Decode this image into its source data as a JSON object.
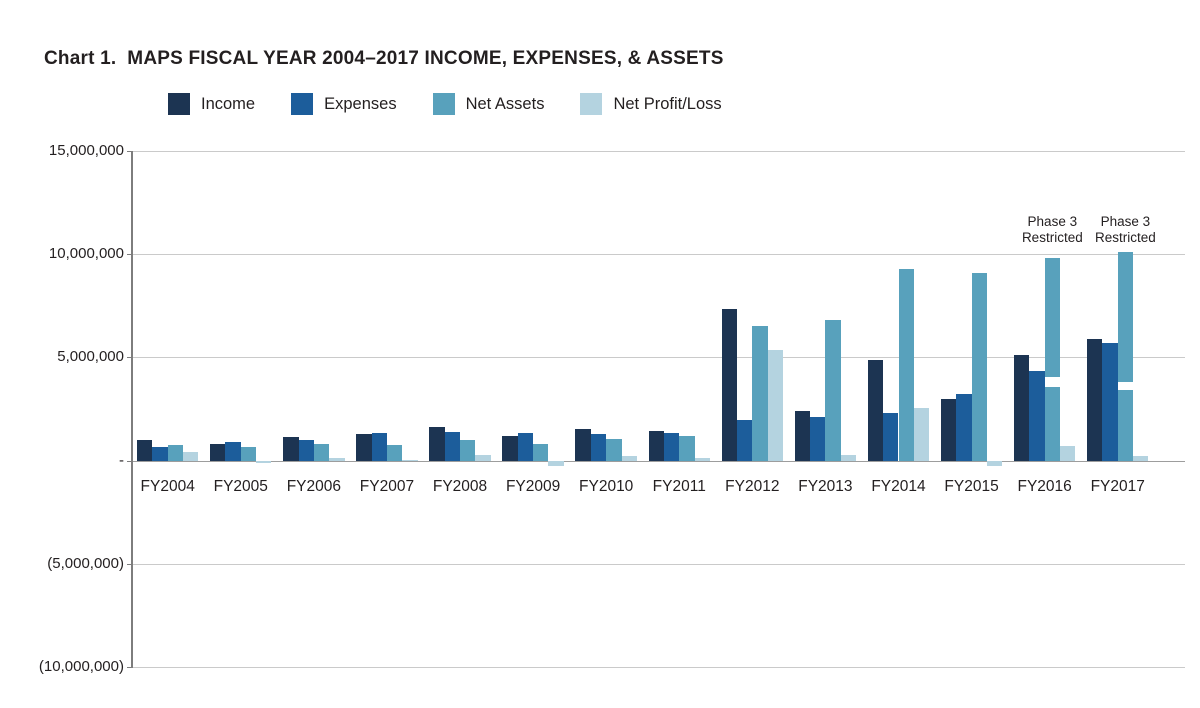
{
  "page": {
    "title": "Chart 1.  MAPS FISCAL YEAR 2004–2017 INCOME, EXPENSES, & ASSETS"
  },
  "chart_data": {
    "type": "bar",
    "title": "Chart 1.  MAPS FISCAL YEAR 2004–2017 INCOME, EXPENSES, & ASSETS",
    "xlabel": "",
    "ylabel": "",
    "grid": "horizontal",
    "legend_position": "top",
    "ylim": [
      -10000000,
      15000000
    ],
    "y_ticks": [
      {
        "value": 15000000,
        "label": "15,000,000"
      },
      {
        "value": 10000000,
        "label": "10,000,000"
      },
      {
        "value": 5000000,
        "label": "5,000,000"
      },
      {
        "value": 0,
        "label": "-"
      },
      {
        "value": -5000000,
        "label": "(5,000,000)"
      },
      {
        "value": -10000000,
        "label": "(10,000,000)"
      }
    ],
    "categories": [
      "FY2004",
      "FY2005",
      "FY2006",
      "FY2007",
      "FY2008",
      "FY2009",
      "FY2010",
      "FY2011",
      "FY2012",
      "FY2013",
      "FY2014",
      "FY2015",
      "FY2016",
      "FY2017"
    ],
    "series": [
      {
        "name": "Income",
        "color": "#1c3452",
        "values": [
          1000000,
          820000,
          1150000,
          1300000,
          1650000,
          1200000,
          1550000,
          1450000,
          7350000,
          2400000,
          4850000,
          3000000,
          5100000,
          5900000
        ]
      },
      {
        "name": "Expenses",
        "color": "#1c5d9b",
        "values": [
          650000,
          900000,
          1000000,
          1350000,
          1400000,
          1350000,
          1300000,
          1320000,
          1950000,
          2100000,
          2300000,
          3250000,
          4350000,
          5700000
        ]
      },
      {
        "name": "Net Assets",
        "color": "#58a1bc",
        "values": [
          750000,
          660000,
          820000,
          780000,
          1000000,
          820000,
          1050000,
          1180000,
          6500000,
          6800000,
          9300000,
          9100000,
          9800000,
          10100000
        ]
      },
      {
        "name": "Net Profit/Loss",
        "color": "#b4d3e0",
        "values": [
          400000,
          -110000,
          150000,
          30000,
          280000,
          -240000,
          220000,
          130000,
          5350000,
          250000,
          2550000,
          -280000,
          700000,
          200000
        ]
      }
    ],
    "restricted_dividers": [
      {
        "category": "FY2016",
        "series": "Net Assets",
        "gap_from": 3550000,
        "gap_to": 4050000
      },
      {
        "category": "FY2017",
        "series": "Net Assets",
        "gap_from": 3400000,
        "gap_to": 3800000
      }
    ],
    "annotations": [
      {
        "category": "FY2016",
        "series": "Net Assets",
        "text": "Phase 3\nRestricted"
      },
      {
        "category": "FY2017",
        "series": "Net Assets",
        "text": "Phase 3\nRestricted"
      }
    ]
  }
}
